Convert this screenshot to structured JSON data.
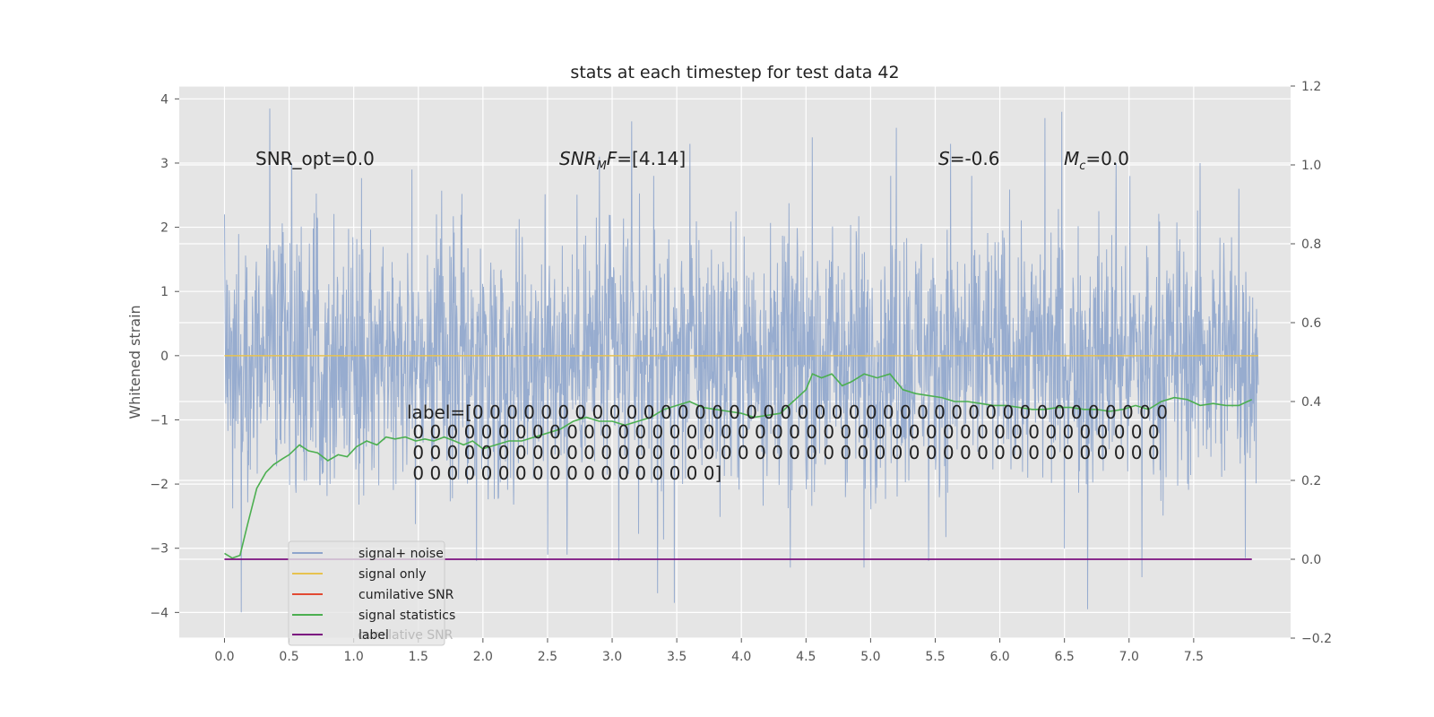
{
  "chart_data": {
    "type": "line",
    "title": "stats at each timestep for test data 42",
    "ylabel": "Whitened strain",
    "xlabel": "",
    "xlim": [
      -0.35,
      8.25
    ],
    "ylim": [
      -4.4,
      4.2
    ],
    "ylim_right": [
      -0.2,
      1.2
    ],
    "xticks": [
      "0.0",
      "0.5",
      "1.0",
      "1.5",
      "2.0",
      "2.5",
      "3.0",
      "3.5",
      "4.0",
      "4.5",
      "5.0",
      "5.5",
      "6.0",
      "6.5",
      "7.0",
      "7.5"
    ],
    "yticks_left": [
      "4",
      "3",
      "2",
      "1",
      "0",
      "−1",
      "−2",
      "−3",
      "−4"
    ],
    "yticks_right": [
      "1.2",
      "1.0",
      "0.8",
      "0.6",
      "0.4",
      "0.2",
      "0.0",
      "−0.2"
    ],
    "grid": true,
    "legend_position": "lower-left",
    "colors": {
      "signal_noise": "#8ea5cc",
      "signal_only": "#e7c24f",
      "cumilative_snr": "#e24a33",
      "signal_statistics": "#4caf50",
      "label": "#7b0f7f",
      "background": "#e5e5e5",
      "grid": "#ffffff"
    },
    "series": [
      {
        "name": "signal+ noise",
        "axis": "left",
        "x_range": [
          0.0,
          8.0
        ],
        "envelope_upper": 2.0,
        "envelope_lower": -2.0,
        "peaks": [
          {
            "x": 0.0,
            "y": 2.2
          },
          {
            "x": 0.13,
            "y": -4.0
          },
          {
            "x": 0.35,
            "y": 3.85
          },
          {
            "x": 0.52,
            "y": 3.0
          },
          {
            "x": 1.45,
            "y": 2.9
          },
          {
            "x": 1.95,
            "y": -3.2
          },
          {
            "x": 2.5,
            "y": -3.1
          },
          {
            "x": 2.65,
            "y": -3.1
          },
          {
            "x": 2.9,
            "y": 3.1
          },
          {
            "x": 3.05,
            "y": -3.2
          },
          {
            "x": 3.15,
            "y": 3.65
          },
          {
            "x": 3.35,
            "y": -3.7
          },
          {
            "x": 3.48,
            "y": -3.85
          },
          {
            "x": 3.6,
            "y": 3.3
          },
          {
            "x": 4.38,
            "y": -3.3
          },
          {
            "x": 4.55,
            "y": 3.4
          },
          {
            "x": 4.95,
            "y": -3.3
          },
          {
            "x": 5.2,
            "y": 3.55
          },
          {
            "x": 5.45,
            "y": -3.2
          },
          {
            "x": 5.62,
            "y": 3.3
          },
          {
            "x": 6.35,
            "y": 3.7
          },
          {
            "x": 6.48,
            "y": 3.8
          },
          {
            "x": 6.9,
            "y": 3.0
          },
          {
            "x": 6.68,
            "y": -3.95
          },
          {
            "x": 7.1,
            "y": -3.45
          },
          {
            "x": 7.55,
            "y": 3.0
          },
          {
            "x": 7.85,
            "y": 2.6
          },
          {
            "x": 7.9,
            "y": -3.15
          }
        ]
      },
      {
        "name": "signal only",
        "axis": "left",
        "x": [
          0.0,
          8.0
        ],
        "y": [
          0.0,
          0.0
        ]
      },
      {
        "name": "cumilative SNR",
        "axis": "right",
        "x": [],
        "y": []
      },
      {
        "name": "signal statistics",
        "axis": "right",
        "x": [
          0.0,
          0.06,
          0.12,
          0.18,
          0.25,
          0.32,
          0.38,
          0.45,
          0.5,
          0.58,
          0.65,
          0.72,
          0.8,
          0.88,
          0.95,
          1.02,
          1.1,
          1.18,
          1.25,
          1.32,
          1.4,
          1.48,
          1.55,
          1.62,
          1.7,
          1.78,
          1.85,
          1.92,
          2.0,
          2.1,
          2.2,
          2.3,
          2.4,
          2.5,
          2.6,
          2.7,
          2.8,
          2.9,
          3.0,
          3.1,
          3.2,
          3.3,
          3.4,
          3.5,
          3.6,
          3.7,
          3.8,
          3.9,
          4.0,
          4.1,
          4.2,
          4.3,
          4.4,
          4.5,
          4.55,
          4.62,
          4.7,
          4.78,
          4.85,
          4.95,
          5.05,
          5.15,
          5.25,
          5.35,
          5.45,
          5.55,
          5.65,
          5.75,
          5.85,
          5.95,
          6.05,
          6.15,
          6.25,
          6.35,
          6.45,
          6.55,
          6.65,
          6.75,
          6.85,
          6.95,
          7.05,
          7.15,
          7.25,
          7.35,
          7.45,
          7.55,
          7.65,
          7.75,
          7.85,
          7.95
        ],
        "y": [
          0.015,
          0.003,
          0.01,
          0.09,
          0.18,
          0.22,
          0.24,
          0.255,
          0.265,
          0.29,
          0.275,
          0.27,
          0.25,
          0.265,
          0.26,
          0.285,
          0.3,
          0.29,
          0.31,
          0.305,
          0.31,
          0.3,
          0.305,
          0.3,
          0.31,
          0.3,
          0.29,
          0.3,
          0.28,
          0.29,
          0.3,
          0.3,
          0.31,
          0.32,
          0.33,
          0.35,
          0.36,
          0.35,
          0.35,
          0.34,
          0.35,
          0.36,
          0.38,
          0.39,
          0.4,
          0.385,
          0.38,
          0.375,
          0.37,
          0.36,
          0.365,
          0.37,
          0.4,
          0.43,
          0.47,
          0.46,
          0.47,
          0.44,
          0.45,
          0.47,
          0.46,
          0.47,
          0.43,
          0.42,
          0.415,
          0.41,
          0.4,
          0.4,
          0.395,
          0.39,
          0.39,
          0.385,
          0.38,
          0.38,
          0.385,
          0.385,
          0.38,
          0.38,
          0.375,
          0.38,
          0.39,
          0.38,
          0.4,
          0.41,
          0.405,
          0.39,
          0.395,
          0.39,
          0.39,
          0.405
        ]
      },
      {
        "name": "label",
        "axis": "right",
        "x": [
          0.0,
          7.95
        ],
        "y": [
          0.0,
          0.0
        ]
      }
    ],
    "annotations": {
      "snr_opt": "SNR_opt=0.0",
      "snr_mf_main": "SNR",
      "snr_mf_sub": "M",
      "snr_mf_mid": "F",
      "snr_mf_value": "=[4.14]",
      "s_main": "S",
      "s_value": "=-0.6",
      "mc_main": "M",
      "mc_sub": "c",
      "mc_value": "=0.0",
      "label_lines": [
        "label=[0 0 0 0 0 0 0 0 0 0 0 0 0 0 0 0 0 0 0 0 0 0 0 0 0 0 0 0 0 0 0 0 0 0 0 0 0 0 0 0 0",
        " 0 0 0 0 0 0 0 0 0 0 0 0 0 0 0 0 0 0 0 0 0 0 0 0 0 0 0 0 0 0 0 0 0 0 0 0 0 0 0 0 0 0 0 0",
        " 0 0 0 0 0 0 0 0 0 0 0 0 0 0 0 0 0 0 0 0 0 0 0 0 0 0 0 0 0 0 0 0 0 0 0 0 0 0 0 0 0 0 0 0",
        " 0 0 0 0 0 0 0 0 0 0 0 0 0 0 0 0 0 0]"
      ],
      "ghost_legend": "cumilative SNR"
    },
    "legend": [
      "signal+ noise",
      "signal only",
      "cumilative SNR",
      "signal statistics",
      "label"
    ]
  }
}
